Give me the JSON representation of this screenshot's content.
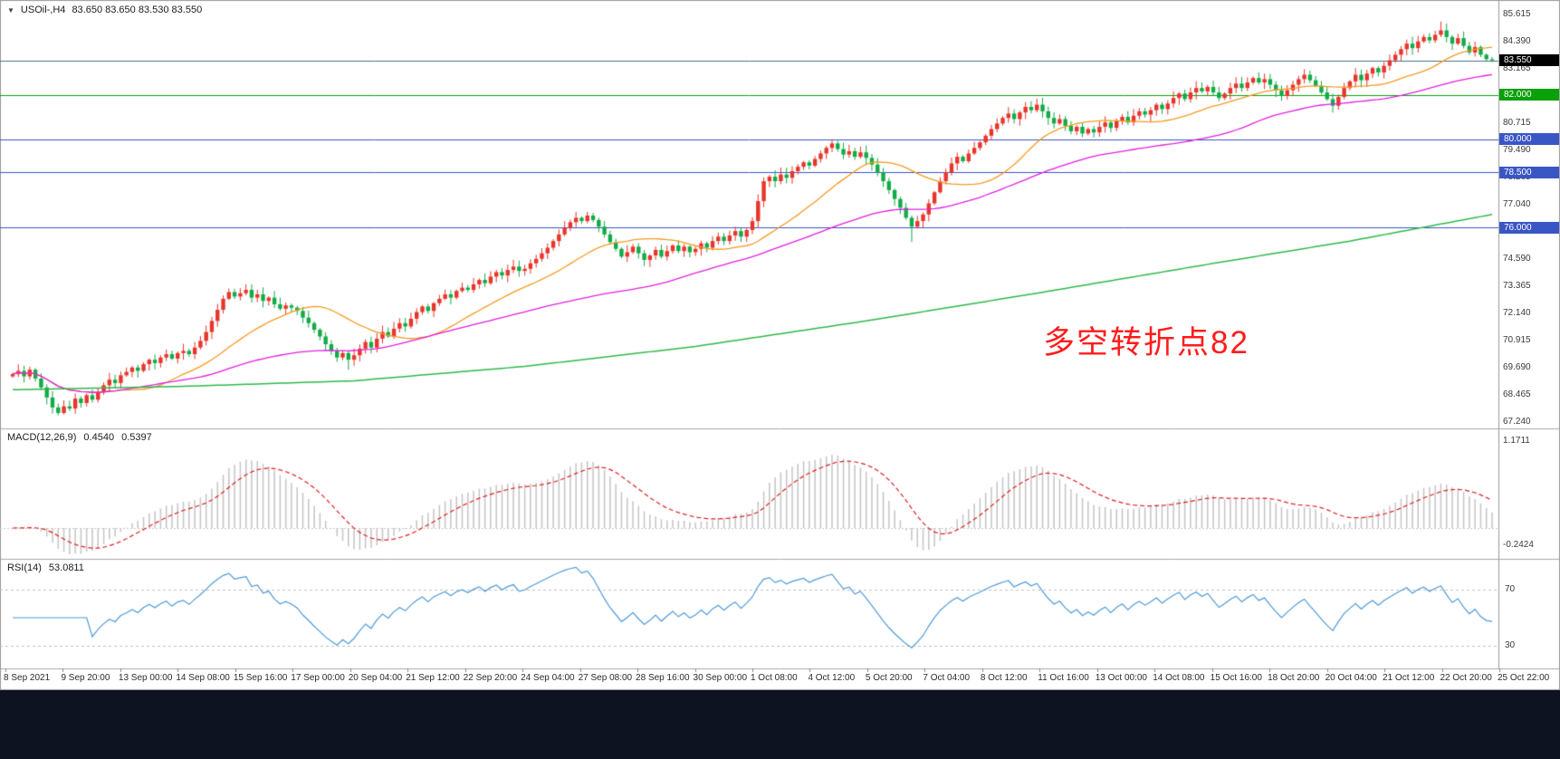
{
  "annotation": {
    "text": "多空转折点82",
    "color": "#ff1c1c"
  },
  "time_axis_note": "labels live in chart_data.0.x_labels",
  "chart_data": [
    {
      "id": "price",
      "type": "candlestick",
      "symbol": "USOil",
      "timeframe": "H4",
      "collapse_icon": "▼",
      "title": "USOil-,H4",
      "ohlc_label": "83.650 83.650 83.530 83.550",
      "up_color": "#e8352b",
      "down_color": "#12ab47",
      "first_open": 69.3,
      "closes": [
        69.4,
        69.55,
        69.3,
        69.6,
        69.2,
        68.8,
        68.35,
        67.9,
        67.65,
        67.95,
        67.85,
        68.3,
        68.1,
        68.45,
        68.25,
        68.6,
        68.9,
        69.15,
        69.0,
        69.35,
        69.5,
        69.7,
        69.55,
        69.85,
        70.05,
        69.9,
        70.15,
        70.3,
        70.1,
        70.35,
        70.45,
        70.3,
        70.6,
        70.9,
        71.3,
        71.8,
        72.3,
        72.8,
        73.1,
        72.9,
        73.05,
        73.2,
        72.85,
        73.0,
        72.7,
        72.85,
        72.55,
        72.35,
        72.5,
        72.4,
        72.25,
        71.95,
        71.7,
        71.4,
        71.1,
        70.75,
        70.45,
        70.15,
        70.35,
        70.05,
        70.25,
        70.55,
        70.85,
        70.6,
        71.0,
        71.3,
        71.1,
        71.45,
        71.7,
        71.55,
        71.9,
        72.2,
        72.45,
        72.25,
        72.6,
        72.8,
        73.0,
        72.85,
        73.15,
        73.3,
        73.2,
        73.45,
        73.65,
        73.5,
        73.8,
        74.0,
        73.85,
        74.1,
        74.25,
        74.05,
        74.15,
        74.4,
        74.6,
        74.85,
        75.1,
        75.4,
        75.7,
        76.0,
        76.25,
        76.45,
        76.3,
        76.55,
        76.35,
        76.05,
        75.7,
        75.35,
        75.05,
        74.7,
        74.9,
        75.15,
        74.85,
        74.55,
        74.75,
        75.0,
        74.7,
        74.95,
        75.2,
        74.95,
        75.15,
        74.9,
        75.05,
        75.3,
        75.1,
        75.4,
        75.6,
        75.4,
        75.65,
        75.85,
        75.6,
        75.9,
        76.3,
        77.2,
        78.1,
        78.3,
        78.1,
        78.4,
        78.25,
        78.55,
        78.75,
        78.95,
        78.8,
        79.1,
        79.35,
        79.6,
        79.8,
        79.55,
        79.3,
        79.45,
        79.2,
        79.4,
        79.15,
        78.85,
        78.5,
        78.1,
        77.7,
        77.3,
        76.9,
        76.45,
        76.05,
        76.3,
        76.6,
        77.1,
        77.6,
        78.1,
        78.5,
        78.9,
        79.2,
        79.0,
        79.35,
        79.6,
        79.85,
        80.15,
        80.45,
        80.7,
        80.95,
        81.15,
        80.9,
        81.2,
        81.45,
        81.3,
        81.55,
        81.25,
        80.95,
        80.7,
        80.9,
        80.6,
        80.35,
        80.55,
        80.25,
        80.45,
        80.3,
        80.55,
        80.75,
        80.5,
        80.8,
        81.0,
        80.75,
        81.05,
        81.25,
        81.1,
        81.3,
        81.55,
        81.35,
        81.6,
        81.85,
        82.05,
        81.8,
        82.1,
        82.3,
        82.15,
        82.35,
        82.1,
        81.85,
        82.05,
        82.3,
        82.5,
        82.3,
        82.55,
        82.75,
        82.55,
        82.7,
        82.45,
        82.2,
        81.95,
        82.2,
        82.45,
        82.7,
        82.9,
        82.65,
        82.4,
        82.1,
        81.8,
        81.5,
        81.9,
        82.3,
        82.6,
        82.9,
        82.65,
        82.95,
        83.2,
        83.0,
        83.3,
        83.55,
        83.8,
        84.05,
        84.3,
        84.1,
        84.4,
        84.6,
        84.45,
        84.7,
        84.9,
        84.6,
        84.3,
        84.55,
        84.2,
        83.9,
        84.15,
        83.8,
        83.6,
        83.55
      ],
      "wick_overrides": {
        "59": [
          0.1,
          0.45
        ],
        "158": [
          0.1,
          0.7
        ],
        "251": [
          0.4,
          0.1
        ]
      },
      "mas": [
        {
          "type": "sma",
          "period": 20,
          "color": "#f59a23"
        },
        {
          "type": "sma",
          "period": 60,
          "color": "#e020e0"
        },
        {
          "type": "anchors",
          "color": "#2db84b",
          "points": [
            [
              0,
              68.7
            ],
            [
              30,
              68.85
            ],
            [
              60,
              69.1
            ],
            [
              90,
              69.75
            ],
            [
              120,
              70.65
            ],
            [
              150,
              71.8
            ],
            [
              180,
              73.05
            ],
            [
              210,
              74.35
            ],
            [
              235,
              75.4
            ],
            [
              260,
              76.6
            ]
          ]
        }
      ],
      "h_lines": [
        {
          "price": 83.55,
          "label": "83.550",
          "line_color": "#44708d",
          "tag_bg": "#000000"
        },
        {
          "price": 82.0,
          "label": "82.000",
          "line_color": "#0aa00a",
          "tag_bg": "#0aa00a"
        },
        {
          "price": 80.0,
          "label": "80.000",
          "line_color": "#3a56c5",
          "tag_bg": "#3a56c5"
        },
        {
          "price": 78.5,
          "label": "78.500",
          "line_color": "#3a56c5",
          "tag_bg": "#3a56c5"
        },
        {
          "price": 76.0,
          "label": "76.000",
          "line_color": "#3a56c5",
          "tag_bg": "#3a56c5"
        }
      ],
      "y_ticks": [
        "85.615",
        "84.390",
        "83.165",
        "80.715",
        "79.490",
        "78.265",
        "77.040",
        "75.815",
        "74.590",
        "73.365",
        "72.140",
        "70.915",
        "69.690",
        "68.465",
        "67.240"
      ],
      "ylim": [
        67.24,
        85.615
      ],
      "x_labels": [
        "8 Sep 2021",
        "9 Sep 20:00",
        "13 Sep 00:00",
        "14 Sep 08:00",
        "15 Sep 16:00",
        "17 Sep 00:00",
        "20 Sep 04:00",
        "21 Sep 12:00",
        "22 Sep 20:00",
        "24 Sep 04:00",
        "27 Sep 08:00",
        "28 Sep 16:00",
        "30 Sep 00:00",
        "1 Oct 08:00",
        "4 Oct 12:00",
        "5 Oct 20:00",
        "7 Oct 04:00",
        "8 Oct 12:00",
        "11 Oct 16:00",
        "13 Oct 00:00",
        "14 Oct 08:00",
        "15 Oct 16:00",
        "18 Oct 20:00",
        "20 Oct 04:00",
        "21 Oct 12:00",
        "22 Oct 20:00",
        "25 Oct 22:00"
      ]
    },
    {
      "id": "macd",
      "type": "macd-histogram",
      "label": "MACD(12,26,9)",
      "fast": 12,
      "slow": 26,
      "signal": 9,
      "value_main": "0.4540",
      "value_signal": "0.5397",
      "hist_color": "#c4c4c4",
      "signal_color": "#dd2020",
      "y_ticks": [
        "1.1711",
        "-0.2424"
      ]
    },
    {
      "id": "rsi",
      "type": "line",
      "label": "RSI(14)",
      "period": 14,
      "value": "53.0811",
      "color": "#4d9ad8",
      "levels": [
        "70",
        "30"
      ]
    }
  ]
}
